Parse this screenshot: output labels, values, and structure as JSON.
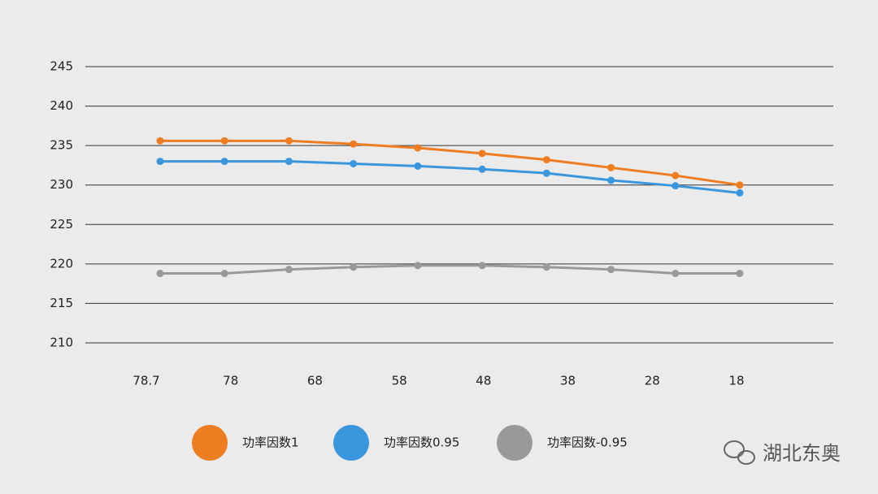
{
  "chart_data": {
    "type": "line",
    "xtick_labels": [
      "78.7",
      "78",
      "68",
      "58",
      "48",
      "38",
      "28",
      "18"
    ],
    "ylim": [
      210,
      245
    ],
    "yticks": [
      210,
      215,
      220,
      225,
      230,
      235,
      240,
      245
    ],
    "grid": true,
    "series": [
      {
        "name": "功率因数1",
        "color": "#ee7d22",
        "values": [
          235.6,
          235.6,
          235.6,
          235.2,
          234.7,
          234.0,
          233.2,
          232.2,
          231.2,
          230.0
        ]
      },
      {
        "name": "功率因数0.95",
        "color": "#3a97dd",
        "values": [
          233.0,
          233.0,
          233.0,
          232.7,
          232.4,
          232.0,
          231.5,
          230.6,
          229.9,
          229.0
        ]
      },
      {
        "name": "功率因数-0.95",
        "color": "#999999",
        "values": [
          218.8,
          218.8,
          219.3,
          219.6,
          219.8,
          219.8,
          219.6,
          219.3,
          218.8,
          218.8
        ]
      }
    ],
    "legend": "bottom"
  },
  "watermark": "湖北东奥"
}
